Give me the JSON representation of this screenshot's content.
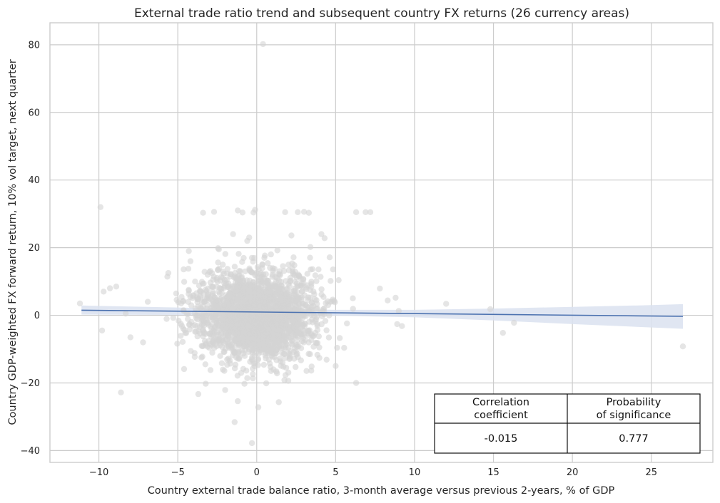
{
  "chart_data": {
    "type": "scatter",
    "title": "External trade ratio trend and subsequent country FX returns (26 currency areas)",
    "xlabel": "Country external trade balance ratio, 3-month average versus previous 2-years, % of GDP",
    "ylabel": "Country GDP-weighted FX forward return, 10% vol target, next quarter",
    "xlim": [
      -13.1,
      28.9
    ],
    "ylim": [
      -43.5,
      86.5
    ],
    "xticks": [
      -10,
      -5,
      0,
      5,
      10,
      15,
      20,
      25
    ],
    "xtick_labels": [
      "−10",
      "−5",
      "0",
      "5",
      "10",
      "15",
      "20",
      "25"
    ],
    "yticks": [
      -40,
      -20,
      0,
      20,
      40,
      60,
      80
    ],
    "ytick_labels": [
      "−40",
      "−20",
      "0",
      "20",
      "40",
      "60",
      "80"
    ],
    "grid": true,
    "colors": {
      "points": "#d3d3d3",
      "regression": "#4c72b0",
      "ci_band": "#dae2f0",
      "grid": "#cccccc"
    },
    "regression_line": {
      "x": [
        -11.1,
        27.0
      ],
      "y": [
        1.5,
        -0.3
      ]
    },
    "confidence_band": {
      "x": [
        -11.1,
        -5,
        0,
        5,
        10,
        15,
        20,
        25,
        27.0
      ],
      "upper": [
        2.9,
        2.3,
        1.8,
        1.6,
        1.6,
        2.0,
        2.5,
        3.0,
        3.3
      ],
      "lower": [
        0.2,
        0.1,
        0.0,
        -0.1,
        -0.6,
        -1.5,
        -2.6,
        -3.6,
        -4.0
      ]
    },
    "outliers": [
      [
        -9.9,
        32
      ],
      [
        -9.7,
        7
      ],
      [
        -9.3,
        8
      ],
      [
        -9.8,
        -4.5
      ],
      [
        -8.6,
        -22.8
      ],
      [
        -8.3,
        0.5
      ],
      [
        -8.9,
        8.5
      ],
      [
        -8.0,
        -6.5
      ],
      [
        -7.2,
        -8
      ],
      [
        -6.9,
        4
      ],
      [
        -11.2,
        3.5
      ],
      [
        0.4,
        80.2
      ],
      [
        6.3,
        30.5
      ],
      [
        6.9,
        30.5
      ],
      [
        7.2,
        30.5
      ],
      [
        -3.4,
        30.3
      ],
      [
        -2.7,
        30.6
      ],
      [
        -1.2,
        31.0
      ],
      [
        -0.9,
        30.4
      ],
      [
        1.8,
        30.5
      ],
      [
        2.6,
        30.5
      ],
      [
        3.0,
        30.6
      ],
      [
        3.3,
        30.3
      ],
      [
        -0.2,
        30.4
      ],
      [
        -0.1,
        31.2
      ],
      [
        -0.3,
        -37.8
      ],
      [
        -1.4,
        -31.6
      ],
      [
        -1.2,
        -25.4
      ],
      [
        0.1,
        -27.2
      ],
      [
        1.4,
        -25.7
      ],
      [
        -3.7,
        -23.3
      ],
      [
        6.3,
        -20.0
      ],
      [
        -2.0,
        -22.1
      ],
      [
        12.0,
        3.4
      ],
      [
        14.8,
        1.8
      ],
      [
        15.6,
        -5.2
      ],
      [
        16.3,
        -2.2
      ],
      [
        27.0,
        -9.2
      ],
      [
        8.8,
        5.2
      ],
      [
        9.2,
        -3.2
      ],
      [
        8.9,
        -2.6
      ],
      [
        9.0,
        1.3
      ],
      [
        7.8,
        7.9
      ],
      [
        8.3,
        4.4
      ],
      [
        -5.6,
        12.5
      ],
      [
        -4.2,
        16
      ],
      [
        4.1,
        24.0
      ],
      [
        4.3,
        22.8
      ],
      [
        -4.3,
        19.0
      ],
      [
        -1.5,
        24.0
      ],
      [
        -0.6,
        22.0
      ],
      [
        0.9,
        18.0
      ],
      [
        2.2,
        23.6
      ],
      [
        3.4,
        20.2
      ],
      [
        -2.4,
        19.5
      ],
      [
        -0.3,
        17.0
      ],
      [
        -4.6,
        -15.9
      ],
      [
        5.0,
        -15.0
      ]
    ],
    "cloud": {
      "count": 2300,
      "center": [
        0.0,
        0.0
      ],
      "sd": [
        1.85,
        6.4
      ],
      "x_range": [
        -7.5,
        8.0
      ],
      "y_range": [
        -21,
        23
      ],
      "seed": 17
    },
    "stats_table": {
      "header": [
        "Correlation\ncoefficient",
        "Probability\nof significance"
      ],
      "header_line1": [
        "Correlation",
        "Probability"
      ],
      "header_line2": [
        "coefficient",
        "of significance"
      ],
      "values": [
        "-0.015",
        "0.777"
      ]
    }
  }
}
